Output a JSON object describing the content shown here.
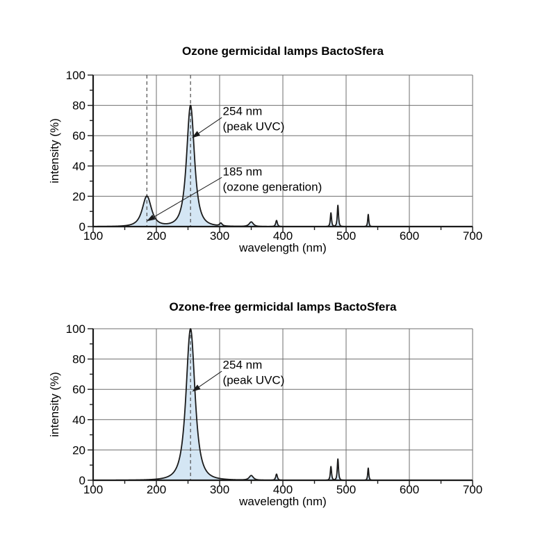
{
  "page": {
    "background": "#ffffff"
  },
  "style": {
    "accent_fill": "#d4e6f4",
    "line_color": "#1a1a1a",
    "grid_color": "#6e6e6e",
    "dashed_color": "#4d4d4d",
    "text_color": "#000000"
  },
  "chart_data": [
    {
      "type": "area",
      "title": "Ozone germicidal lamps BactoSfera",
      "xlabel": "wavelength (nm)",
      "ylabel": "intensity (%)",
      "xlim": [
        100,
        700
      ],
      "ylim": [
        0,
        100
      ],
      "x_major_ticks": [
        100,
        200,
        300,
        400,
        500,
        600,
        700
      ],
      "x_minor_tick_step": 50,
      "y_major_ticks": [
        0,
        20,
        40,
        60,
        80,
        100
      ],
      "y_minor_tick_step": 10,
      "grid": true,
      "legend": false,
      "peak_model": "lorentzian_power_1.5",
      "peaks": [
        {
          "wavelength_nm": 185,
          "intensity_pct": 20,
          "width_nm": 11
        },
        {
          "wavelength_nm": 254,
          "intensity_pct": 80,
          "width_nm": 9.5
        },
        {
          "wavelength_nm": 302,
          "intensity_pct": 1.8,
          "width_nm": 3
        },
        {
          "wavelength_nm": 350,
          "intensity_pct": 3,
          "width_nm": 5
        },
        {
          "wavelength_nm": 390,
          "intensity_pct": 4,
          "width_nm": 2
        },
        {
          "wavelength_nm": 476,
          "intensity_pct": 9,
          "width_nm": 1.5
        },
        {
          "wavelength_nm": 487,
          "intensity_pct": 14,
          "width_nm": 1.5
        },
        {
          "wavelength_nm": 535,
          "intensity_pct": 8,
          "width_nm": 1.3
        }
      ],
      "dashed_guides_nm": [
        185,
        254
      ],
      "annotations": [
        {
          "label_lines": [
            "254 nm",
            "(peak UVC)"
          ],
          "text_pos": [
            305,
            81
          ],
          "arrow_from": [
            303.5,
            72
          ],
          "arrow_to": [
            256,
            58.5
          ]
        },
        {
          "label_lines": [
            "185 nm",
            "(ozone generation)"
          ],
          "text_pos": [
            305,
            41
          ],
          "arrow_from": [
            303.5,
            32.5
          ],
          "arrow_to": [
            184.5,
            3.5
          ]
        }
      ]
    },
    {
      "type": "area",
      "title": "Ozone-free germicidal lamps BactoSfera",
      "xlabel": "wavelength (nm)",
      "ylabel": "intensity (%)",
      "xlim": [
        100,
        700
      ],
      "ylim": [
        0,
        100
      ],
      "x_major_ticks": [
        100,
        200,
        300,
        400,
        500,
        600,
        700
      ],
      "x_minor_tick_step": 50,
      "y_major_ticks": [
        0,
        20,
        40,
        60,
        80,
        100
      ],
      "y_minor_tick_step": 10,
      "grid": true,
      "legend": false,
      "peak_model": "lorentzian_power_1.5",
      "peaks": [
        {
          "wavelength_nm": 254,
          "intensity_pct": 100,
          "width_nm": 10.8
        },
        {
          "wavelength_nm": 350,
          "intensity_pct": 3,
          "width_nm": 5
        },
        {
          "wavelength_nm": 390,
          "intensity_pct": 4,
          "width_nm": 2
        },
        {
          "wavelength_nm": 476,
          "intensity_pct": 9,
          "width_nm": 1.5
        },
        {
          "wavelength_nm": 487,
          "intensity_pct": 14,
          "width_nm": 1.5
        },
        {
          "wavelength_nm": 535,
          "intensity_pct": 8,
          "width_nm": 1.3
        }
      ],
      "dashed_guides_nm": [
        254
      ],
      "annotations": [
        {
          "label_lines": [
            "254 nm",
            "(peak UVC)"
          ],
          "text_pos": [
            305,
            81
          ],
          "arrow_from": [
            303.5,
            72
          ],
          "arrow_to": [
            256.5,
            58.5
          ]
        }
      ]
    }
  ]
}
